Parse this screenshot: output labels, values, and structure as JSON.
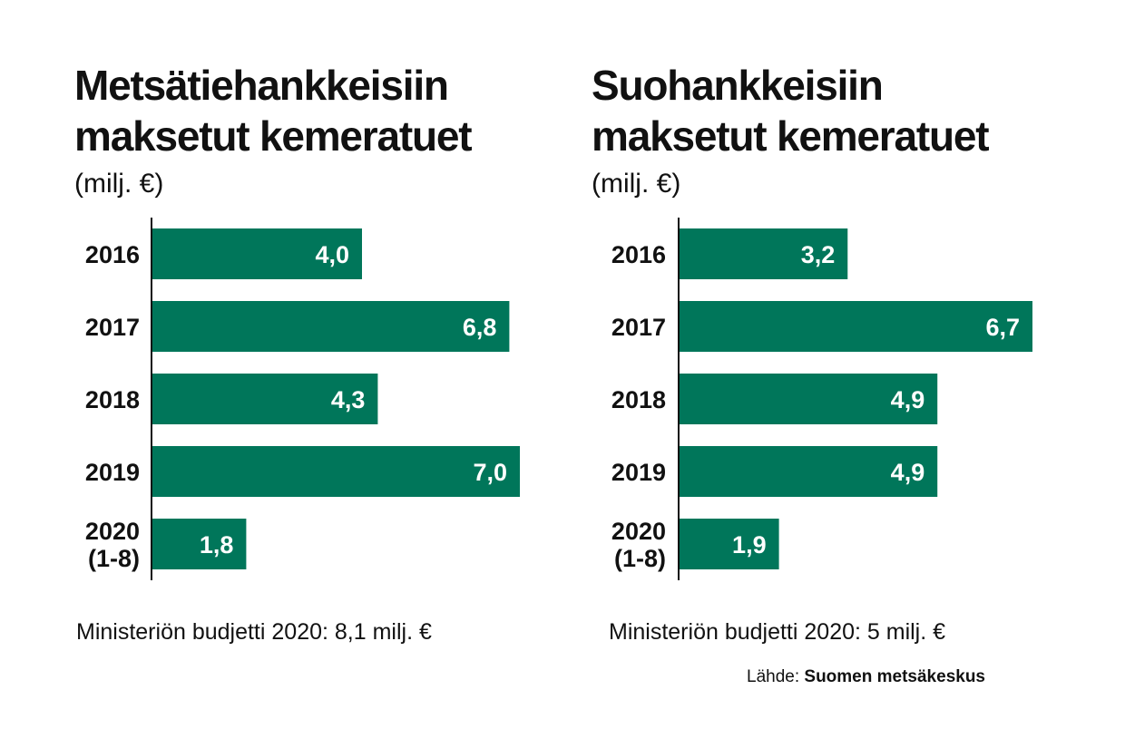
{
  "colors": {
    "bar": "#00765a",
    "bar_label": "#ffffff",
    "axis": "#111111",
    "text": "#111111"
  },
  "chart_data": [
    {
      "type": "bar",
      "orientation": "horizontal",
      "title_line1": "Metsätiehankkeisiin",
      "title_line2": "maksetut kemeratuet",
      "unit": "(milj. €)",
      "categories": [
        [
          "2016"
        ],
        [
          "2017"
        ],
        [
          "2018"
        ],
        [
          "2019"
        ],
        [
          "2020",
          "(1-8)"
        ]
      ],
      "values": [
        4.0,
        6.8,
        4.3,
        7.0,
        1.8
      ],
      "value_labels": [
        "4,0",
        "6,8",
        "4,3",
        "7,0",
        "1,8"
      ],
      "xlim": [
        0,
        7.0
      ],
      "grid": false,
      "footnote": "Ministeriön budjetti 2020: 8,1 milj. €"
    },
    {
      "type": "bar",
      "orientation": "horizontal",
      "title_line1": "Suohankkeisiin",
      "title_line2": "maksetut kemeratuet",
      "unit": "(milj. €)",
      "categories": [
        [
          "2016"
        ],
        [
          "2017"
        ],
        [
          "2018"
        ],
        [
          "2019"
        ],
        [
          "2020",
          "(1-8)"
        ]
      ],
      "values": [
        3.2,
        6.7,
        4.9,
        4.9,
        1.9
      ],
      "value_labels": [
        "3,2",
        "6,7",
        "4,9",
        "4,9",
        "1,9"
      ],
      "xlim": [
        0,
        7.0
      ],
      "grid": false,
      "footnote": "Ministeriön budjetti 2020: 5 milj. €"
    }
  ],
  "source": {
    "label": "Lähde:",
    "name": "Suomen metsäkeskus"
  }
}
